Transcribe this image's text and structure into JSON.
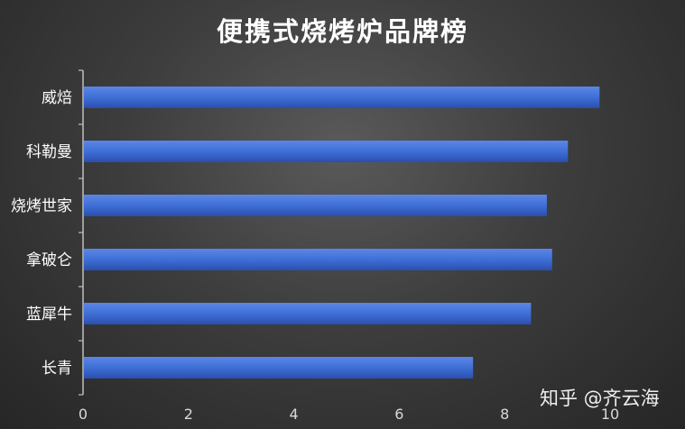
{
  "chart_data": {
    "type": "bar",
    "orientation": "horizontal",
    "title": "便携式烧烤炉品牌榜",
    "categories": [
      "威焙",
      "科勒曼",
      "烧烤世家",
      "拿破仑",
      "蓝犀牛",
      "长青"
    ],
    "values": [
      9.8,
      9.2,
      8.8,
      8.9,
      8.5,
      7.4
    ],
    "xlabel": "",
    "ylabel": "",
    "xlim": [
      0,
      10
    ],
    "xticks": [
      "0",
      "2",
      "4",
      "6",
      "8",
      "10"
    ],
    "grid": false,
    "bar_color": "#3f6fd6",
    "bar_color_dark": "#2b55b8"
  },
  "watermark": "知乎 @齐云海",
  "colors": {
    "text": "#ffffff",
    "axis": "#bfbfbf"
  }
}
